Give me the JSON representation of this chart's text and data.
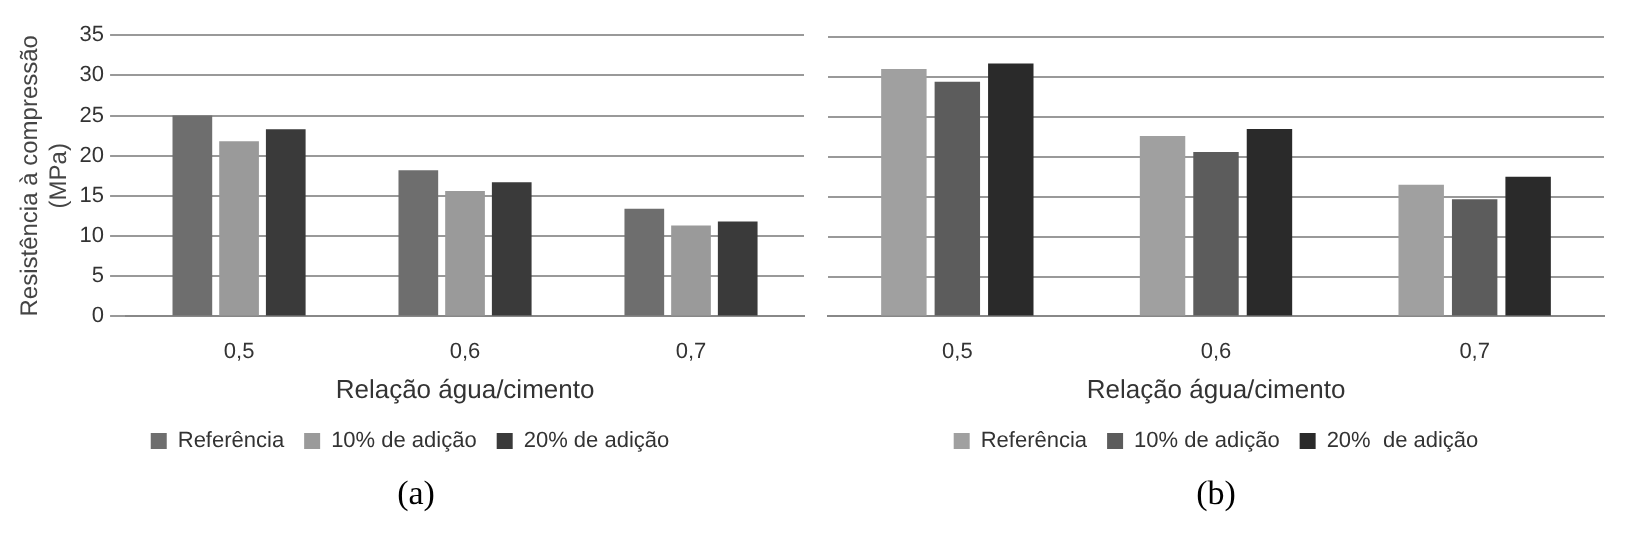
{
  "chart_data": [
    {
      "type": "bar",
      "title": "(a)",
      "xlabel": "Relação água/cimento",
      "ylabel": "Resistência à compressão (MPa)",
      "categories": [
        "0,5",
        "0,6",
        "0,7"
      ],
      "series": [
        {
          "name": "Referência",
          "color": "#6e6e6e",
          "values": [
            25,
            18.2,
            13.4
          ]
        },
        {
          "name": "10% de adição",
          "color": "#9a9a9a",
          "values": [
            21.8,
            15.6,
            11.3
          ]
        },
        {
          "name": "20% de adição",
          "color": "#3a3a3a",
          "values": [
            23.3,
            16.7,
            11.8
          ]
        }
      ],
      "ylim": [
        0,
        35
      ],
      "yticks": [
        0,
        5,
        10,
        15,
        20,
        25,
        30,
        35
      ],
      "grid": "y",
      "legend": "bottom"
    },
    {
      "type": "bar",
      "title": "(b)",
      "xlabel": "Relação água/cimento",
      "categories": [
        "0,5",
        "0,6",
        "0,7"
      ],
      "series": [
        {
          "name": "Referência",
          "color": "#a0a0a0",
          "values": [
            31,
            22.6,
            16.5
          ]
        },
        {
          "name": "10% de adição",
          "color": "#5c5c5c",
          "values": [
            29.4,
            20.6,
            14.7
          ]
        },
        {
          "name": "20%  de adição",
          "color": "#2a2a2a",
          "values": [
            31.7,
            23.5,
            17.5
          ]
        }
      ],
      "ylim": [
        0,
        35
      ],
      "yticks": [
        0,
        5,
        10,
        15,
        20,
        25,
        30,
        35
      ],
      "grid": "y",
      "legend": "bottom",
      "tick_labels": "x"
    }
  ]
}
